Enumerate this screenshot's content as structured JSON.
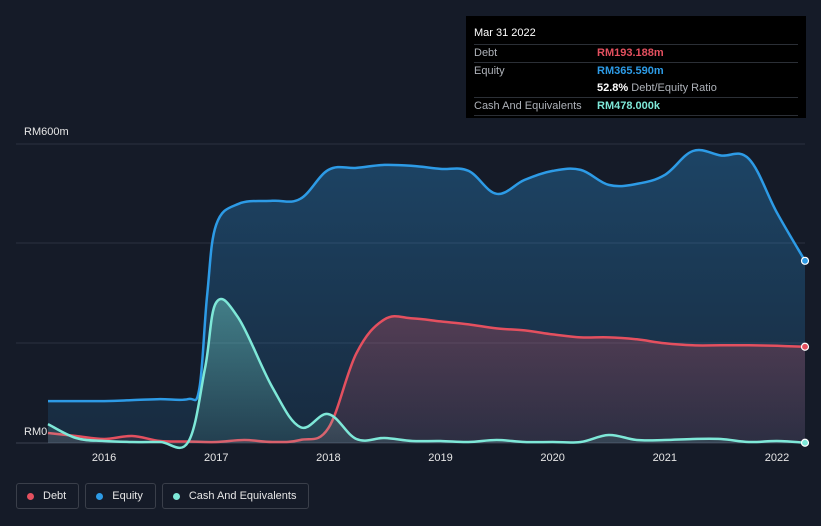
{
  "tooltip": {
    "date": "Mar 31 2022",
    "debt_label": "Debt",
    "debt_value": "RM193.188m",
    "equity_label": "Equity",
    "equity_value": "RM365.590m",
    "ratio_value": "52.8%",
    "ratio_label": "Debt/Equity Ratio",
    "cash_label": "Cash And Equivalents",
    "cash_value": "RM478.000k"
  },
  "colors": {
    "debt": "#e4505f",
    "equity": "#2d9be6",
    "cash": "#7ee8d8",
    "background": "#151b28"
  },
  "legend": [
    {
      "label": "Debt",
      "color": "#e4505f"
    },
    {
      "label": "Equity",
      "color": "#2d9be6"
    },
    {
      "label": "Cash And Equivalents",
      "color": "#7ee8d8"
    }
  ],
  "chart_data": {
    "type": "area",
    "title": "",
    "xlabel": "",
    "ylabel": "",
    "y_top_label": "RM600m",
    "y_bottom_label": "RM0",
    "ylim": [
      0,
      600
    ],
    "xlim": [
      2015.5,
      2022.25
    ],
    "x_tick_labels": [
      "2016",
      "2017",
      "2018",
      "2019",
      "2020",
      "2021",
      "2022"
    ],
    "x_ticks": [
      2016,
      2017,
      2018,
      2019,
      2020,
      2021,
      2022
    ],
    "series": [
      {
        "name": "Equity",
        "points": [
          [
            2015.5,
            84
          ],
          [
            2016.0,
            84
          ],
          [
            2016.25,
            86
          ],
          [
            2016.5,
            88
          ],
          [
            2016.75,
            88
          ],
          [
            2016.85,
            110
          ],
          [
            2016.92,
            300
          ],
          [
            2017.0,
            438
          ],
          [
            2017.2,
            480
          ],
          [
            2017.5,
            486
          ],
          [
            2017.75,
            490
          ],
          [
            2018.0,
            548
          ],
          [
            2018.25,
            552
          ],
          [
            2018.5,
            558
          ],
          [
            2018.75,
            556
          ],
          [
            2019.0,
            550
          ],
          [
            2019.25,
            546
          ],
          [
            2019.5,
            500
          ],
          [
            2019.75,
            528
          ],
          [
            2020.0,
            546
          ],
          [
            2020.25,
            548
          ],
          [
            2020.5,
            518
          ],
          [
            2020.75,
            520
          ],
          [
            2021.0,
            538
          ],
          [
            2021.25,
            586
          ],
          [
            2021.5,
            577
          ],
          [
            2021.75,
            570
          ],
          [
            2022.0,
            462
          ],
          [
            2022.25,
            365.6
          ]
        ]
      },
      {
        "name": "Debt",
        "points": [
          [
            2015.5,
            20
          ],
          [
            2015.75,
            14
          ],
          [
            2016.0,
            8
          ],
          [
            2016.25,
            14
          ],
          [
            2016.5,
            4
          ],
          [
            2016.75,
            3
          ],
          [
            2017.0,
            2
          ],
          [
            2017.25,
            6
          ],
          [
            2017.5,
            2
          ],
          [
            2017.75,
            6
          ],
          [
            2018.0,
            30
          ],
          [
            2018.25,
            180
          ],
          [
            2018.5,
            248
          ],
          [
            2018.75,
            250
          ],
          [
            2019.0,
            244
          ],
          [
            2019.25,
            238
          ],
          [
            2019.5,
            230
          ],
          [
            2019.75,
            226
          ],
          [
            2020.0,
            218
          ],
          [
            2020.25,
            212
          ],
          [
            2020.5,
            212
          ],
          [
            2020.75,
            208
          ],
          [
            2021.0,
            200
          ],
          [
            2021.25,
            196
          ],
          [
            2021.5,
            196
          ],
          [
            2021.75,
            196
          ],
          [
            2022.0,
            195
          ],
          [
            2022.25,
            193.2
          ]
        ]
      },
      {
        "name": "Cash And Equivalents",
        "points": [
          [
            2015.5,
            38
          ],
          [
            2015.75,
            10
          ],
          [
            2016.0,
            4
          ],
          [
            2016.25,
            2
          ],
          [
            2016.5,
            2
          ],
          [
            2016.75,
            2
          ],
          [
            2016.9,
            150
          ],
          [
            2017.0,
            282
          ],
          [
            2017.2,
            250
          ],
          [
            2017.5,
            112
          ],
          [
            2017.75,
            32
          ],
          [
            2018.0,
            58
          ],
          [
            2018.25,
            8
          ],
          [
            2018.5,
            10
          ],
          [
            2018.75,
            4
          ],
          [
            2019.0,
            4
          ],
          [
            2019.25,
            2
          ],
          [
            2019.5,
            6
          ],
          [
            2019.75,
            2
          ],
          [
            2020.0,
            2
          ],
          [
            2020.25,
            2
          ],
          [
            2020.5,
            16
          ],
          [
            2020.75,
            6
          ],
          [
            2021.0,
            6
          ],
          [
            2021.25,
            8
          ],
          [
            2021.5,
            8
          ],
          [
            2021.75,
            2
          ],
          [
            2022.0,
            4
          ],
          [
            2022.25,
            0.48
          ]
        ]
      }
    ]
  }
}
